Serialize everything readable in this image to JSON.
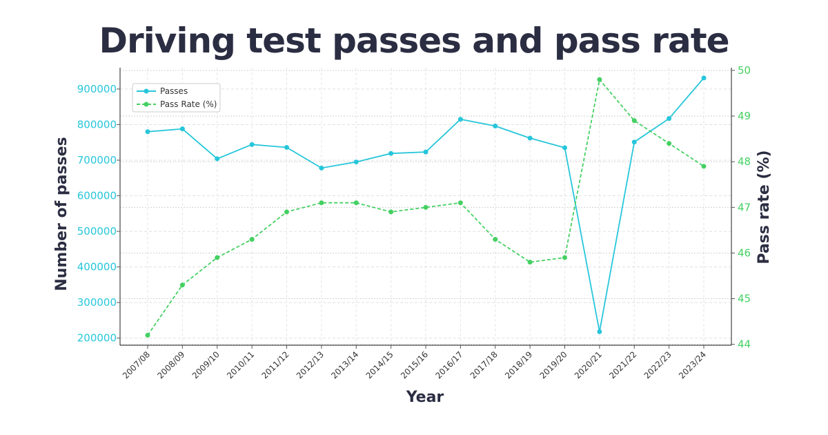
{
  "chart_data": {
    "type": "line",
    "title": "Driving test passes and pass rate",
    "xlabel": "Year",
    "ylabel": "Number of passes",
    "y2label": "Pass rate (%)",
    "categories": [
      "2007/08",
      "2008/09",
      "2009/10",
      "2010/11",
      "2011/12",
      "2012/13",
      "2013/14",
      "2014/15",
      "2015/16",
      "2016/17",
      "2017/18",
      "2018/19",
      "2019/20",
      "2020/21",
      "2021/22",
      "2022/23",
      "2023/24"
    ],
    "series": [
      {
        "name": "Passes",
        "axis": "left",
        "style": "solid",
        "color": "#26c6da",
        "values": [
          780000,
          788000,
          704000,
          744000,
          736000,
          678000,
          695000,
          719000,
          723000,
          815000,
          796000,
          762000,
          735000,
          218000,
          751000,
          817000,
          931000
        ]
      },
      {
        "name": "Pass Rate (%)",
        "axis": "right",
        "style": "dashed",
        "color": "#44d062",
        "values": [
          44.2,
          45.3,
          45.9,
          46.3,
          46.9,
          47.1,
          47.1,
          46.9,
          47.0,
          47.1,
          46.3,
          45.8,
          45.9,
          49.8,
          48.9,
          48.4,
          47.9
        ]
      }
    ],
    "ylim": [
      180000,
      960000
    ],
    "yticks": [
      "200000",
      "300000",
      "400000",
      "500000",
      "600000",
      "700000",
      "800000",
      "900000"
    ],
    "y2lim": [
      43.98,
      50.06
    ],
    "y2ticks": [
      "44",
      "45",
      "46",
      "47",
      "48",
      "49",
      "50"
    ],
    "grid": true,
    "legend_position": "top-left"
  }
}
